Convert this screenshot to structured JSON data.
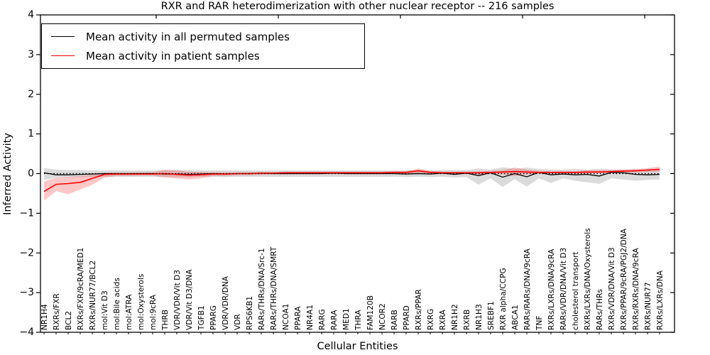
{
  "title": "RXR and RAR heterodimerization with other nuclear receptor -- 216 samples",
  "legend": {
    "items": [
      {
        "label": "Mean activity in all permuted samples",
        "color": "#000000"
      },
      {
        "label": "Mean activity in patient samples",
        "color": "#ff0000"
      }
    ]
  },
  "chart_data": {
    "type": "line",
    "title": "RXR and RAR heterodimerization with other nuclear receptor -- 216 samples",
    "xlabel": "Cellular Entities",
    "ylabel": "Inferred Activity",
    "ylim": [
      -4,
      4
    ],
    "yticks": [
      -4,
      -3,
      -2,
      -1,
      0,
      1,
      2,
      3,
      4
    ],
    "grid": false,
    "legend_position": "upper left",
    "zero_line": true,
    "categories": [
      "NR1H4",
      "RXRs/FXR",
      "BCL2",
      "RXRs/FXR/9cRA/MED1",
      "RXRs/NUR77/BCL2",
      "mol:Vit D3",
      "mol:Bile acids",
      "mol:ATRA",
      "mol:Oxysterols",
      "mol:9cRA",
      "THRB",
      "VDR/VDR/Vit D3",
      "VDR/Vit D3/DNA",
      "TGFB1",
      "PPARG",
      "VDR/VDR/DNA",
      "VDR",
      "RPS6KB1",
      "RARs/THRs/DNA/Src-1",
      "RARs/THRs/DNA/SMRT",
      "NCOA1",
      "PPARA",
      "NR4A1",
      "RARG",
      "RARA",
      "MED1",
      "THRA",
      "FAM120B",
      "NCOR2",
      "RARB",
      "PPARD",
      "RXRs/PPAR",
      "RXRG",
      "RXRA",
      "NR1H2",
      "RXRB",
      "NR1H3",
      "SREBF1",
      "RXR alpha/CCPG",
      "ABCA1",
      "RARs/RARs/DNA/9cRA",
      "TNF",
      "RXRs/LXRs/DNA/9cRA",
      "RARs/VDR/DNA/Vit D3",
      "cholesterol transport",
      "RXRs/LXRs/DNA/Oxysterols",
      "RARs/THRs",
      "RXRs/VDR/DNA/Vit D3",
      "RXRs/PPAR/9cRA/PGJ2/DNA",
      "RXRs/RXRs/DNA/9cRA",
      "RXRs/NUR77",
      "RXRs/LXRs/DNA"
    ],
    "series": [
      {
        "id": "permuted",
        "name": "Mean activity in all permuted samples",
        "color": "#000000",
        "line_width": 1.3,
        "band_color": "#000000",
        "band_opacity": 0.14,
        "values": [
          0.02,
          -0.03,
          -0.03,
          -0.02,
          -0.01,
          0,
          0,
          0,
          0,
          0,
          -0.01,
          -0.01,
          -0.02,
          -0.01,
          0,
          -0.01,
          0,
          0,
          0.01,
          0,
          0,
          0,
          0,
          0,
          0.01,
          0,
          0,
          0,
          0,
          0,
          -0.01,
          0,
          -0.01,
          0.01,
          -0.02,
          0.01,
          -0.05,
          0.02,
          -0.09,
          0,
          -0.08,
          0.03,
          -0.03,
          -0.01,
          -0.03,
          -0.02,
          -0.06,
          0.03,
          0.02,
          -0.02,
          -0.03,
          -0.02
        ],
        "band_upper": [
          0.14,
          0.1,
          0.09,
          0.09,
          0.08,
          0.08,
          0.08,
          0.08,
          0.08,
          0.08,
          0.08,
          0.09,
          0.09,
          0.08,
          0.08,
          0.08,
          0.08,
          0.08,
          0.08,
          0.08,
          0.08,
          0.08,
          0.08,
          0.08,
          0.08,
          0.08,
          0.08,
          0.08,
          0.08,
          0.08,
          0.08,
          0.08,
          0.08,
          0.09,
          0.09,
          0.09,
          0.13,
          0.1,
          0.16,
          0.12,
          0.15,
          0.12,
          0.1,
          0.1,
          0.12,
          0.1,
          0.12,
          0.1,
          0.1,
          0.1,
          0.1,
          0.1
        ],
        "band_lower": [
          -0.16,
          -0.1,
          -0.09,
          -0.09,
          -0.08,
          -0.08,
          -0.08,
          -0.08,
          -0.08,
          -0.08,
          -0.08,
          -0.09,
          -0.09,
          -0.08,
          -0.08,
          -0.09,
          -0.08,
          -0.08,
          -0.08,
          -0.08,
          -0.08,
          -0.08,
          -0.08,
          -0.08,
          -0.08,
          -0.08,
          -0.08,
          -0.08,
          -0.08,
          -0.08,
          -0.09,
          -0.08,
          -0.09,
          -0.08,
          -0.1,
          -0.09,
          -0.28,
          -0.12,
          -0.34,
          -0.14,
          -0.33,
          -0.12,
          -0.24,
          -0.12,
          -0.18,
          -0.22,
          -0.26,
          -0.12,
          -0.15,
          -0.18,
          -0.16,
          -0.15
        ]
      },
      {
        "id": "patient",
        "name": "Mean activity in patient samples",
        "color": "#ff0000",
        "line_width": 1.6,
        "band_color": "#ff0000",
        "band_opacity": 0.22,
        "values": [
          -0.45,
          -0.27,
          -0.25,
          -0.22,
          -0.12,
          -0.02,
          -0.01,
          -0.01,
          -0.01,
          -0.01,
          0,
          -0.02,
          -0.04,
          -0.03,
          -0.01,
          -0.01,
          0,
          0,
          0.01,
          0.01,
          0.02,
          0.02,
          0.02,
          0.02,
          0.02,
          0.02,
          0.02,
          0.02,
          0.02,
          0.03,
          0.03,
          0.07,
          0.03,
          0.02,
          0.02,
          0.02,
          0.02,
          0.03,
          0.04,
          0.05,
          0.04,
          0.03,
          0.03,
          0.03,
          0.03,
          0.04,
          0.04,
          0.05,
          0.06,
          0.07,
          0.09,
          0.11
        ],
        "band_upper": [
          -0.2,
          -0.1,
          -0.08,
          -0.06,
          -0.03,
          0.02,
          0.02,
          0.02,
          0.03,
          0.03,
          0.1,
          0.08,
          0.05,
          0.04,
          0.03,
          0.03,
          0.03,
          0.03,
          0.04,
          0.04,
          0.05,
          0.05,
          0.05,
          0.05,
          0.05,
          0.05,
          0.05,
          0.05,
          0.05,
          0.06,
          0.06,
          0.13,
          0.07,
          0.05,
          0.05,
          0.05,
          0.06,
          0.07,
          0.09,
          0.15,
          0.1,
          0.07,
          0.06,
          0.06,
          0.06,
          0.08,
          0.08,
          0.09,
          0.1,
          0.12,
          0.14,
          0.18
        ],
        "band_lower": [
          -0.68,
          -0.44,
          -0.52,
          -0.4,
          -0.28,
          -0.1,
          -0.06,
          -0.06,
          -0.05,
          -0.05,
          -0.1,
          -0.12,
          -0.15,
          -0.12,
          -0.06,
          -0.06,
          -0.04,
          -0.04,
          -0.03,
          -0.02,
          -0.02,
          -0.01,
          -0.01,
          -0.01,
          -0.01,
          -0.01,
          -0.01,
          -0.01,
          -0.01,
          0,
          0,
          0,
          0,
          -0.01,
          -0.01,
          -0.01,
          -0.02,
          -0.01,
          -0.02,
          -0.06,
          -0.02,
          0,
          0,
          0,
          0,
          0,
          0.01,
          0.01,
          0.02,
          0.03,
          0.04,
          0.05
        ]
      }
    ]
  }
}
